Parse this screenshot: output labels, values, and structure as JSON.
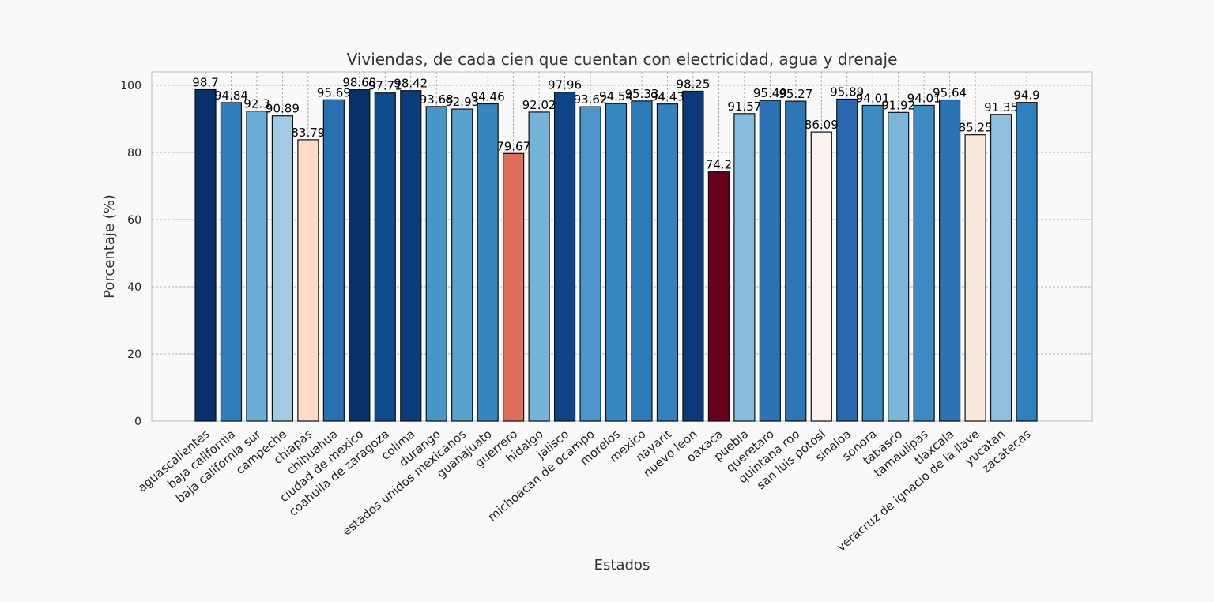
{
  "chart_data": {
    "type": "bar",
    "title": "Viviendas, de cada cien que cuentan con electricidad, agua y drenaje",
    "xlabel": "Estados",
    "ylabel": "Porcentaje (%)",
    "ylim": [
      0,
      104
    ],
    "yticks": [
      0,
      20,
      40,
      60,
      80,
      100
    ],
    "grid": true,
    "categories": [
      "aguascalientes",
      "baja california",
      "baja california sur",
      "campeche",
      "chiapas",
      "chihuahua",
      "ciudad de mexico",
      "coahuila de zaragoza",
      "colima",
      "durango",
      "estados unidos mexicanos",
      "guanajuato",
      "guerrero",
      "hidalgo",
      "jalisco",
      "michoacan de ocampo",
      "morelos",
      "mexico",
      "nayarit",
      "nuevo leon",
      "oaxaca",
      "puebla",
      "queretaro",
      "quintana roo",
      "san luis potosi",
      "sinaloa",
      "sonora",
      "tabasco",
      "tamaulipas",
      "tlaxcala",
      "veracruz de ignacio de la llave",
      "yucatan",
      "zacatecas"
    ],
    "values": [
      98.7,
      94.84,
      92.3,
      90.89,
      83.79,
      95.69,
      98.68,
      97.71,
      98.42,
      93.68,
      92.93,
      94.46,
      79.67,
      92.02,
      97.96,
      93.62,
      94.54,
      95.33,
      94.43,
      98.25,
      74.2,
      91.57,
      95.49,
      95.27,
      86.09,
      95.89,
      94.01,
      91.92,
      94.01,
      95.64,
      85.25,
      91.35,
      94.9
    ],
    "colors": [
      "#08306b",
      "#2e7ebc",
      "#6aaed6",
      "#a0cbe2",
      "#fddbc7",
      "#2a6fb1",
      "#08306b",
      "#0f4c8d",
      "#0a3d7a",
      "#4696c7",
      "#5aa3cf",
      "#3585bf",
      "#dd6f5a",
      "#75b4d8",
      "#0e4385",
      "#4a98c9",
      "#3788c1",
      "#2d7abb",
      "#3282be",
      "#0b3a78",
      "#67001f",
      "#86bddc",
      "#2b73b4",
      "#2c76b6",
      "#faf2ef",
      "#2868ad",
      "#3b8bc2",
      "#7ab6d9",
      "#3b8bc2",
      "#2c73b4",
      "#fae7de",
      "#8ec1de",
      "#3180be"
    ]
  }
}
